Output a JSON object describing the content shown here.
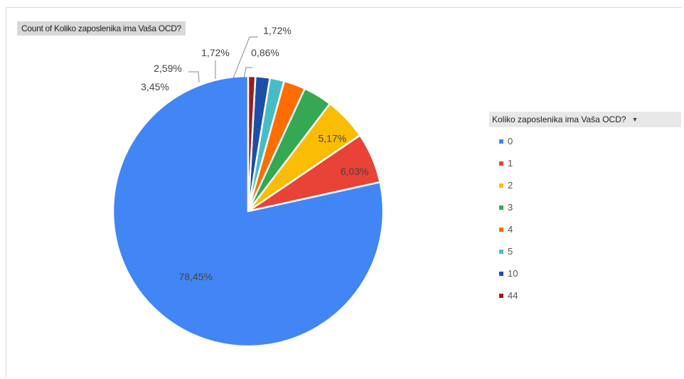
{
  "chart_data": {
    "type": "pie",
    "field_button": "Count of Koliko  zaposlenika ima  Vaša OCD?",
    "legend_title": "Koliko  zaposlenika ima Vaša OCD?",
    "categories": [
      "0",
      "1",
      "2",
      "3",
      "4",
      "5",
      "10",
      "44"
    ],
    "values": [
      78.45,
      6.03,
      5.17,
      3.45,
      2.59,
      1.72,
      1.72,
      0.86
    ],
    "labels": [
      "78,45%",
      "6,03%",
      "5,17%",
      "3,45%",
      "2,59%",
      "1,72%",
      "1,72%",
      "0,86%"
    ],
    "colors": [
      "#4285f4",
      "#e84336",
      "#fbbc04",
      "#34a853",
      "#ff6d01",
      "#46bdc6",
      "#1d4fa8",
      "#9c1c1c"
    ],
    "legend_placement": "right",
    "start_angle": "12 o'clock, counterclockwise"
  },
  "icons": {
    "legend_dropdown": "dropdown-arrow-icon"
  }
}
